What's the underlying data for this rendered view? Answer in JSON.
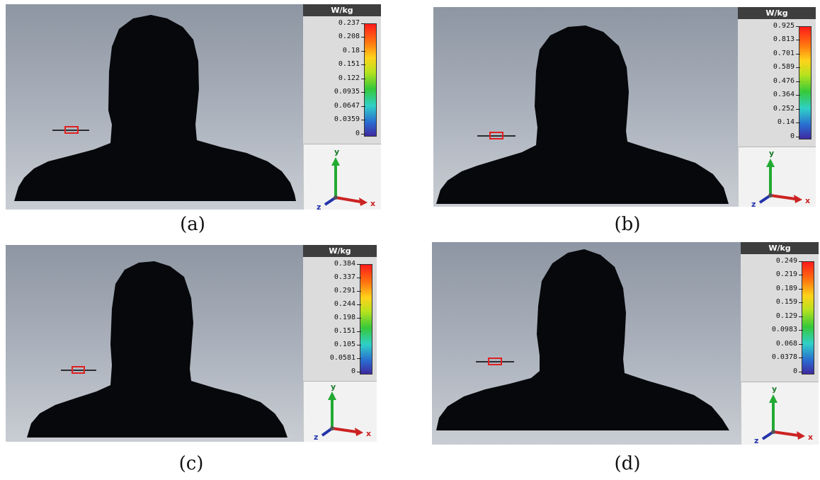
{
  "figures": [
    {
      "caption": "(a)",
      "colorbar": {
        "unit": "W/kg",
        "ticks": [
          "0.237",
          "0.208",
          "0.18",
          "0.151",
          "0.122",
          "0.0935",
          "0.0647",
          "0.0359",
          "0"
        ]
      },
      "axes": {
        "x": "x",
        "y": "y",
        "z": "z"
      }
    },
    {
      "caption": "(b)",
      "colorbar": {
        "unit": "W/kg",
        "ticks": [
          "0.925",
          "0.813",
          "0.701",
          "0.589",
          "0.476",
          "0.364",
          "0.252",
          "0.14",
          "0"
        ]
      },
      "axes": {
        "x": "x",
        "y": "y",
        "z": "z"
      }
    },
    {
      "caption": "(c)",
      "colorbar": {
        "unit": "W/kg",
        "ticks": [
          "0.384",
          "0.337",
          "0.291",
          "0.244",
          "0.198",
          "0.151",
          "0.105",
          "0.0581",
          "0"
        ]
      },
      "axes": {
        "x": "x",
        "y": "y",
        "z": "z"
      }
    },
    {
      "caption": "(d)",
      "colorbar": {
        "unit": "W/kg",
        "ticks": [
          "0.249",
          "0.219",
          "0.189",
          "0.159",
          "0.129",
          "0.0983",
          "0.068",
          "0.0378",
          "0"
        ]
      },
      "axes": {
        "x": "x",
        "y": "y",
        "z": "z"
      }
    }
  ],
  "colors": {
    "colorbar_top": "#ff1a1a",
    "colorbar_bottom": "#3f2aa0",
    "axis_x": "#cc2222",
    "axis_y": "#22aa33",
    "axis_z": "#2233aa",
    "antenna": "#e02020"
  }
}
